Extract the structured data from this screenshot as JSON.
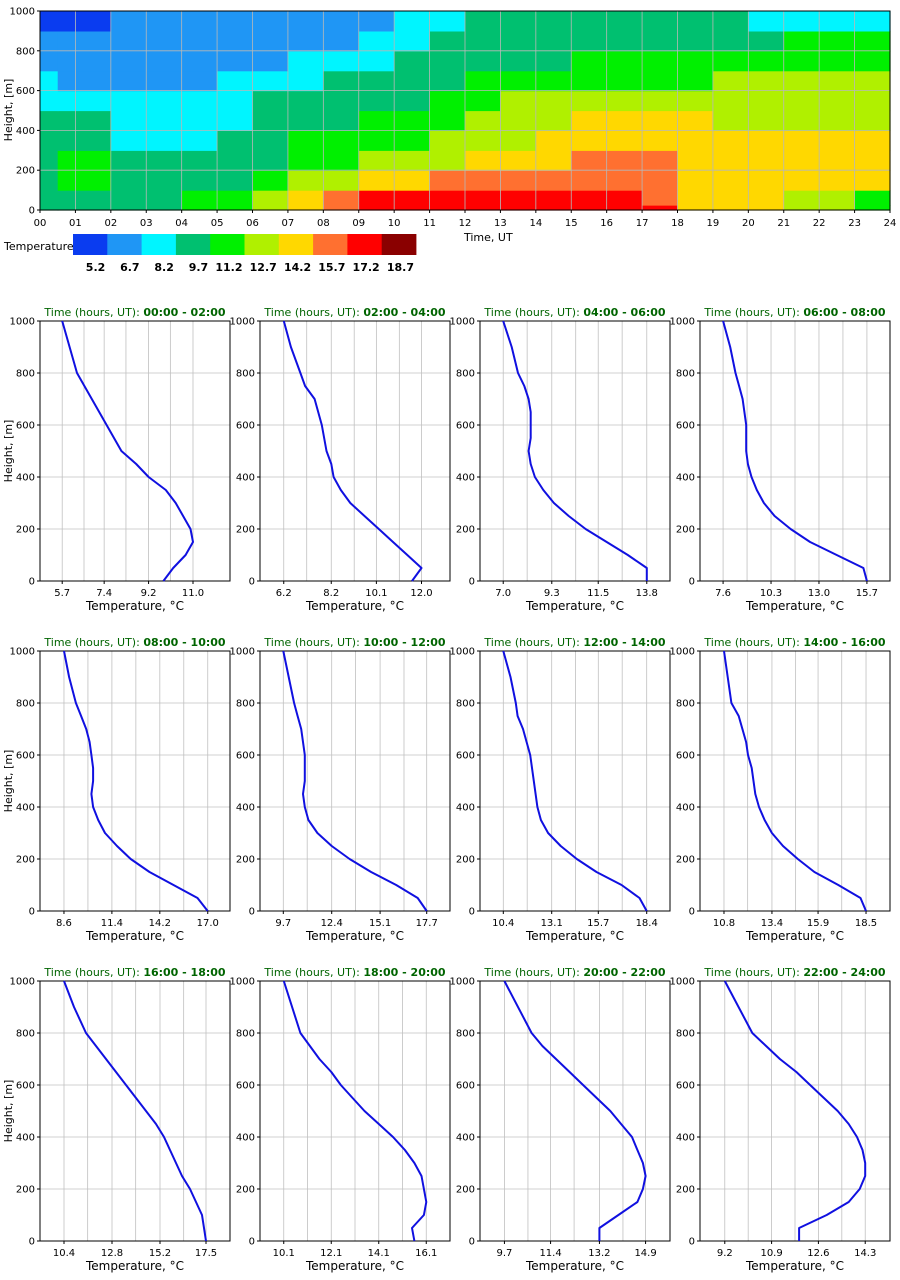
{
  "heatmap": {
    "ylabel": "Height, [m]",
    "xlabel": "Time, UT",
    "x_ticks": [
      "00",
      "01",
      "02",
      "03",
      "04",
      "05",
      "06",
      "07",
      "08",
      "09",
      "10",
      "11",
      "12",
      "13",
      "14",
      "15",
      "16",
      "17",
      "18",
      "19",
      "20",
      "21",
      "22",
      "23",
      "24"
    ],
    "y_ticks": [
      "0",
      "200",
      "400",
      "600",
      "800",
      "1000"
    ],
    "colorbar_title": "Temperature, °C",
    "colorbar_labels": [
      "5.2",
      "6.7",
      "8.2",
      "9.7",
      "11.2",
      "12.7",
      "14.2",
      "15.7",
      "17.2",
      "18.7"
    ],
    "colorbar_colors": [
      "#0a3cf0",
      "#1f96f5",
      "#00f5ff",
      "#00c070",
      "#00f000",
      "#b0f000",
      "#ffd800",
      "#ff7030",
      "#ff0000",
      "#8a0000"
    ]
  },
  "profile_common": {
    "ylabel": "Height, [m]",
    "xlabel": "Temperature, °C",
    "title_prefix": "Time (hours, UT): ",
    "y_ticks": [
      "0",
      "200",
      "400",
      "600",
      "800",
      "1000"
    ],
    "title_color": "#006400",
    "line_color": "#1010e0"
  },
  "chart_data": [
    {
      "type": "heatmap",
      "title": "",
      "xlabel": "Time, UT",
      "ylabel": "Height, [m]",
      "xlim": [
        0,
        24
      ],
      "ylim": [
        0,
        1000
      ],
      "colorbar": {
        "title": "Temperature, °C",
        "levels": [
          5.2,
          6.7,
          8.2,
          9.7,
          11.2,
          12.7,
          14.2,
          15.7,
          17.2,
          18.7
        ]
      },
      "heights": [
        0,
        50,
        150,
        250,
        350,
        450,
        550,
        650,
        750,
        850,
        950
      ],
      "time_boundaries": [
        0,
        0.5,
        1,
        2,
        3,
        4,
        5,
        6,
        7,
        8,
        9,
        10,
        11,
        12,
        13,
        14,
        15,
        16,
        17,
        18,
        19,
        20,
        21,
        22,
        23,
        24
      ],
      "time_centers": [
        0.25,
        0.75,
        1.5,
        2.5,
        3.5,
        4.5,
        5.5,
        6.5,
        7.5,
        8.5,
        9.5,
        10.5,
        11.5,
        12.5,
        13.5,
        14.5,
        15.5,
        16.5,
        17.5,
        18.5,
        19.5,
        20.5,
        21.5,
        22.5,
        23.5
      ],
      "level_index_by_height_and_time": [
        [
          3,
          3,
          3,
          3,
          3,
          4,
          4,
          5,
          6,
          7,
          8,
          8,
          8,
          8,
          8,
          8,
          8,
          8,
          8,
          6,
          6,
          6,
          5,
          5,
          4
        ],
        [
          3,
          3,
          3,
          3,
          3,
          4,
          4,
          5,
          6,
          7,
          8,
          8,
          8,
          8,
          8,
          8,
          8,
          8,
          7,
          6,
          6,
          6,
          5,
          5,
          4
        ],
        [
          3,
          4,
          4,
          3,
          3,
          3,
          3,
          4,
          5,
          5,
          6,
          6,
          7,
          7,
          7,
          7,
          7,
          7,
          7,
          6,
          6,
          6,
          6,
          6,
          6
        ],
        [
          3,
          4,
          4,
          3,
          3,
          3,
          3,
          3,
          4,
          4,
          5,
          5,
          5,
          6,
          6,
          6,
          7,
          7,
          7,
          6,
          6,
          6,
          6,
          6,
          6
        ],
        [
          3,
          3,
          3,
          2,
          2,
          2,
          3,
          3,
          4,
          4,
          4,
          4,
          5,
          5,
          5,
          6,
          6,
          6,
          6,
          6,
          6,
          6,
          6,
          6,
          6
        ],
        [
          3,
          3,
          3,
          2,
          2,
          2,
          2,
          3,
          3,
          3,
          4,
          4,
          4,
          5,
          5,
          5,
          6,
          6,
          6,
          6,
          5,
          5,
          5,
          5,
          5
        ],
        [
          2,
          2,
          2,
          2,
          2,
          2,
          2,
          3,
          3,
          3,
          3,
          3,
          4,
          4,
          5,
          5,
          5,
          5,
          5,
          5,
          5,
          5,
          5,
          5,
          5
        ],
        [
          2,
          1,
          1,
          1,
          1,
          1,
          2,
          2,
          2,
          3,
          3,
          3,
          3,
          4,
          4,
          4,
          4,
          4,
          4,
          4,
          5,
          5,
          5,
          5,
          5
        ],
        [
          1,
          1,
          1,
          1,
          1,
          1,
          1,
          1,
          2,
          2,
          2,
          3,
          3,
          3,
          3,
          3,
          4,
          4,
          4,
          4,
          4,
          4,
          4,
          4,
          4
        ],
        [
          1,
          1,
          1,
          1,
          1,
          1,
          1,
          1,
          1,
          1,
          2,
          2,
          3,
          3,
          3,
          3,
          3,
          3,
          3,
          3,
          3,
          3,
          4,
          4,
          4
        ],
        [
          0,
          0,
          0,
          1,
          1,
          1,
          1,
          1,
          1,
          1,
          1,
          2,
          2,
          3,
          3,
          3,
          3,
          3,
          3,
          3,
          3,
          2,
          2,
          2,
          2
        ]
      ]
    },
    {
      "type": "line",
      "title": "00:00 - 02:00",
      "xticks": [
        "5.7",
        "7.4",
        "9.2",
        "11.0"
      ],
      "xlim": [
        4.8,
        12.5
      ],
      "ylim": [
        0,
        1000
      ],
      "x": [
        9.8,
        10.2,
        10.7,
        11.0,
        10.9,
        10.6,
        10.3,
        9.9,
        9.2,
        8.7,
        8.1,
        7.5,
        6.9,
        6.3,
        5.7
      ],
      "y": [
        0,
        50,
        100,
        150,
        200,
        250,
        300,
        350,
        400,
        450,
        500,
        600,
        700,
        800,
        1000
      ]
    },
    {
      "type": "line",
      "title": "02:00 - 04:00",
      "xticks": [
        "6.2",
        "8.2",
        "10.1",
        "12.0"
      ],
      "xlim": [
        5.2,
        13.2
      ],
      "ylim": [
        0,
        1000
      ],
      "x": [
        11.6,
        12.0,
        11.4,
        10.8,
        10.2,
        9.6,
        9.0,
        8.6,
        8.3,
        8.2,
        8.0,
        7.8,
        7.5,
        7.1,
        6.9,
        6.5,
        6.2
      ],
      "y": [
        0,
        50,
        100,
        150,
        200,
        250,
        300,
        350,
        400,
        450,
        500,
        600,
        700,
        750,
        800,
        900,
        1000
      ]
    },
    {
      "type": "line",
      "title": "04:00 - 06:00",
      "xticks": [
        "7.0",
        "9.3",
        "11.5",
        "13.8"
      ],
      "xlim": [
        5.9,
        14.9
      ],
      "ylim": [
        0,
        1000
      ],
      "x": [
        13.8,
        13.8,
        12.9,
        11.9,
        10.9,
        10.1,
        9.4,
        8.9,
        8.5,
        8.3,
        8.2,
        8.3,
        8.3,
        8.3,
        8.2,
        8.0,
        7.7,
        7.4,
        7.0
      ],
      "y": [
        0,
        50,
        100,
        150,
        200,
        250,
        300,
        350,
        400,
        450,
        500,
        550,
        600,
        650,
        700,
        750,
        800,
        900,
        1000
      ]
    },
    {
      "type": "line",
      "title": "06:00 - 08:00",
      "xticks": [
        "7.6",
        "10.3",
        "13.0",
        "15.7"
      ],
      "xlim": [
        6.3,
        17.0
      ],
      "ylim": [
        0,
        1000
      ],
      "x": [
        15.7,
        15.5,
        14.0,
        12.5,
        11.4,
        10.5,
        9.9,
        9.5,
        9.2,
        9.0,
        8.9,
        8.9,
        8.9,
        8.8,
        8.7,
        8.5,
        8.3,
        8.0,
        7.6
      ],
      "y": [
        0,
        50,
        100,
        150,
        200,
        250,
        300,
        350,
        400,
        450,
        500,
        550,
        600,
        650,
        700,
        750,
        800,
        900,
        1000
      ]
    },
    {
      "type": "line",
      "title": "08:00 - 10:00",
      "xticks": [
        "8.6",
        "11.4",
        "14.2",
        "17.0"
      ],
      "xlim": [
        7.2,
        18.3
      ],
      "ylim": [
        0,
        1000
      ],
      "x": [
        17.0,
        16.4,
        15.0,
        13.6,
        12.5,
        11.7,
        11.0,
        10.6,
        10.3,
        10.2,
        10.3,
        10.3,
        10.2,
        10.1,
        9.9,
        9.6,
        9.3,
        8.9,
        8.6
      ],
      "y": [
        0,
        50,
        100,
        150,
        200,
        250,
        300,
        350,
        400,
        450,
        500,
        550,
        600,
        650,
        700,
        750,
        800,
        900,
        1000
      ]
    },
    {
      "type": "line",
      "title": "10:00 - 12:00",
      "xticks": [
        "9.7",
        "12.4",
        "15.1",
        "17.7"
      ],
      "xlim": [
        8.4,
        19.0
      ],
      "ylim": [
        0,
        1000
      ],
      "x": [
        17.7,
        17.2,
        16.0,
        14.6,
        13.4,
        12.4,
        11.6,
        11.1,
        10.9,
        10.8,
        10.9,
        10.9,
        10.9,
        10.8,
        10.7,
        10.5,
        10.3,
        10.0,
        9.7
      ],
      "y": [
        0,
        50,
        100,
        150,
        200,
        250,
        300,
        350,
        400,
        450,
        500,
        550,
        600,
        650,
        700,
        750,
        800,
        900,
        1000
      ]
    },
    {
      "type": "line",
      "title": "12:00 - 14:00",
      "xticks": [
        "10.4",
        "13.1",
        "15.7",
        "18.4"
      ],
      "xlim": [
        9.1,
        19.7
      ],
      "ylim": [
        0,
        1000
      ],
      "x": [
        18.4,
        18.0,
        17.0,
        15.6,
        14.5,
        13.6,
        12.9,
        12.5,
        12.3,
        12.2,
        12.1,
        12.0,
        11.9,
        11.7,
        11.5,
        11.2,
        11.1,
        10.8,
        10.4
      ],
      "y": [
        0,
        50,
        100,
        150,
        200,
        250,
        300,
        350,
        400,
        450,
        500,
        550,
        600,
        650,
        700,
        750,
        800,
        900,
        1000
      ]
    },
    {
      "type": "line",
      "title": "14:00 - 16:00",
      "xticks": [
        "10.8",
        "13.4",
        "15.9",
        "18.5"
      ],
      "xlim": [
        9.5,
        19.8
      ],
      "ylim": [
        0,
        1000
      ],
      "x": [
        18.5,
        18.2,
        17.0,
        15.7,
        14.8,
        14.0,
        13.4,
        13.0,
        12.7,
        12.5,
        12.4,
        12.3,
        12.1,
        12.0,
        11.8,
        11.6,
        11.2,
        10.8
      ],
      "y": [
        0,
        50,
        100,
        150,
        200,
        250,
        300,
        350,
        400,
        450,
        500,
        550,
        600,
        650,
        700,
        750,
        800,
        1000
      ]
    },
    {
      "type": "line",
      "title": "16:00 - 18:00",
      "xticks": [
        "10.4",
        "12.8",
        "15.2",
        "17.5"
      ],
      "xlim": [
        9.2,
        18.7
      ],
      "ylim": [
        0,
        1000
      ],
      "x": [
        17.5,
        17.4,
        17.3,
        17.0,
        16.7,
        16.3,
        16.0,
        15.7,
        15.4,
        15.0,
        14.5,
        14.0,
        13.5,
        13.0,
        12.5,
        12.0,
        11.5,
        10.9,
        10.4
      ],
      "y": [
        0,
        50,
        100,
        150,
        200,
        250,
        300,
        350,
        400,
        450,
        500,
        550,
        600,
        650,
        700,
        750,
        800,
        900,
        1000
      ]
    },
    {
      "type": "line",
      "title": "18:00 - 20:00",
      "xticks": [
        "10.1",
        "12.1",
        "14.1",
        "16.1"
      ],
      "xlim": [
        9.1,
        17.1
      ],
      "ylim": [
        0,
        1000
      ],
      "x": [
        15.6,
        15.5,
        16.0,
        16.1,
        16.0,
        15.9,
        15.6,
        15.2,
        14.7,
        14.1,
        13.5,
        13.0,
        12.5,
        12.1,
        11.6,
        11.2,
        10.8,
        10.1
      ],
      "y": [
        0,
        50,
        100,
        150,
        200,
        250,
        300,
        350,
        400,
        450,
        500,
        550,
        600,
        650,
        700,
        750,
        800,
        1000
      ]
    },
    {
      "type": "line",
      "title": "20:00 - 22:00",
      "xticks": [
        "9.7",
        "11.4",
        "13.2",
        "14.9"
      ],
      "xlim": [
        8.8,
        15.8
      ],
      "ylim": [
        0,
        1000
      ],
      "x": [
        13.2,
        13.2,
        13.9,
        14.6,
        14.8,
        14.9,
        14.8,
        14.6,
        14.4,
        14.0,
        13.6,
        13.1,
        12.6,
        12.1,
        11.6,
        11.1,
        10.7,
        9.7
      ],
      "y": [
        0,
        50,
        100,
        150,
        200,
        250,
        300,
        350,
        400,
        450,
        500,
        550,
        600,
        650,
        700,
        750,
        800,
        1000
      ]
    },
    {
      "type": "line",
      "title": "22:00 - 24:00",
      "xticks": [
        "9.2",
        "10.9",
        "12.6",
        "14.3"
      ],
      "xlim": [
        8.3,
        15.2
      ],
      "ylim": [
        0,
        1000
      ],
      "x": [
        11.9,
        11.9,
        12.9,
        13.7,
        14.1,
        14.3,
        14.3,
        14.2,
        14.0,
        13.7,
        13.3,
        12.8,
        12.3,
        11.8,
        11.2,
        10.7,
        10.2,
        9.2
      ],
      "y": [
        0,
        50,
        100,
        150,
        200,
        250,
        300,
        350,
        400,
        450,
        500,
        550,
        600,
        650,
        700,
        750,
        800,
        1000
      ]
    }
  ]
}
